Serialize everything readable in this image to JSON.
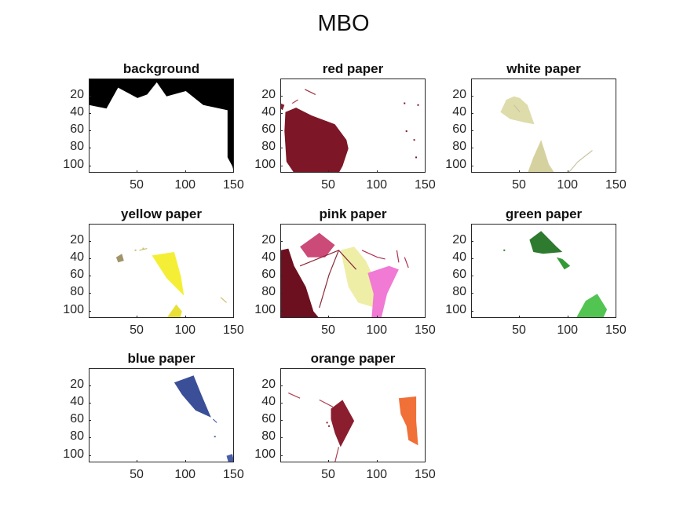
{
  "figure_title": "MBO",
  "chart_data": [
    {
      "type": "image",
      "title": "background",
      "xlim": [
        0.5,
        150.5
      ],
      "ylim": [
        0.5,
        108.5
      ],
      "xticks": [
        50,
        100,
        150
      ],
      "yticks": [
        20,
        40,
        60,
        80,
        100
      ],
      "background": "#000000",
      "regions": [
        {
          "color": "#ffffff",
          "points": [
            [
              0,
              30
            ],
            [
              18,
              34
            ],
            [
              30,
              10
            ],
            [
              50,
              22
            ],
            [
              60,
              18
            ],
            [
              70,
              4
            ],
            [
              80,
              20
            ],
            [
              100,
              14
            ],
            [
              118,
              30
            ],
            [
              143,
              36
            ],
            [
              143,
              90
            ],
            [
              148,
              100
            ],
            [
              150,
              108
            ],
            [
              0,
              108
            ]
          ]
        }
      ]
    },
    {
      "type": "image",
      "title": "red paper",
      "xlim": [
        0.5,
        150.5
      ],
      "ylim": [
        0.5,
        108.5
      ],
      "xticks": [
        50,
        100,
        150
      ],
      "yticks": [
        20,
        40,
        60,
        80,
        100
      ],
      "background": "#ffffff",
      "regions": [
        {
          "color": "#7d1626",
          "points": [
            [
              5,
              38
            ],
            [
              16,
              33
            ],
            [
              32,
              42
            ],
            [
              56,
              52
            ],
            [
              68,
              70
            ],
            [
              70,
              80
            ],
            [
              64,
              100
            ],
            [
              60,
              108
            ],
            [
              14,
              108
            ],
            [
              6,
              95
            ],
            [
              4,
              60
            ]
          ]
        },
        {
          "color": "#8a1d2e",
          "points": [
            [
              0,
              28
            ],
            [
              4,
              30
            ],
            [
              2,
              36
            ],
            [
              0,
              34
            ]
          ]
        }
      ],
      "lines": [
        {
          "color": "#9a3040",
          "points": [
            [
              25,
              12
            ],
            [
              36,
              18
            ]
          ]
        },
        {
          "color": "#b04050",
          "points": [
            [
              18,
              24
            ],
            [
              12,
              28
            ]
          ]
        }
      ],
      "dots": [
        {
          "color": "#7d1626",
          "points": [
            [
              142,
              30
            ],
            [
              138,
              70
            ],
            [
              140,
              90
            ],
            [
              128,
              28
            ],
            [
              130,
              60
            ]
          ]
        }
      ]
    },
    {
      "type": "image",
      "title": "white paper",
      "xlim": [
        0.5,
        150.5
      ],
      "ylim": [
        0.5,
        108.5
      ],
      "xticks": [
        50,
        100,
        150
      ],
      "yticks": [
        20,
        40,
        60,
        80,
        100
      ],
      "background": "#ffffff",
      "regions": [
        {
          "color": "#dedcaa",
          "points": [
            [
              30,
              38
            ],
            [
              36,
              24
            ],
            [
              44,
              20
            ],
            [
              50,
              22
            ],
            [
              58,
              30
            ],
            [
              65,
              52
            ],
            [
              55,
              50
            ],
            [
              40,
              46
            ]
          ]
        },
        {
          "color": "#d6d2a0",
          "points": [
            [
              58,
              108
            ],
            [
              64,
              90
            ],
            [
              72,
              70
            ],
            [
              80,
              98
            ],
            [
              86,
              108
            ]
          ]
        }
      ],
      "lines": [
        {
          "color": "#c8c4a0",
          "points": [
            [
              100,
              108
            ],
            [
              110,
              95
            ],
            [
              125,
              82
            ]
          ]
        },
        {
          "color": "#c8c4a0",
          "points": [
            [
              44,
              30
            ],
            [
              50,
              38
            ]
          ]
        }
      ],
      "dots": []
    },
    {
      "type": "image",
      "title": "yellow paper",
      "xlim": [
        0.5,
        150.5
      ],
      "ylim": [
        0.5,
        108.5
      ],
      "xticks": [
        50,
        100,
        150
      ],
      "yticks": [
        20,
        40,
        60,
        80,
        100
      ],
      "background": "#ffffff",
      "regions": [
        {
          "color": "#f4ef36",
          "points": [
            [
              65,
              36
            ],
            [
              88,
              32
            ],
            [
              95,
              60
            ],
            [
              98,
              82
            ],
            [
              80,
              62
            ]
          ]
        },
        {
          "color": "#e8e036",
          "points": [
            [
              80,
              108
            ],
            [
              90,
              92
            ],
            [
              96,
              100
            ],
            [
              94,
              108
            ]
          ]
        },
        {
          "color": "#a09468",
          "points": [
            [
              28,
              38
            ],
            [
              34,
              34
            ],
            [
              36,
              42
            ],
            [
              30,
              44
            ]
          ]
        }
      ],
      "lines": [
        {
          "color": "#c8c070",
          "points": [
            [
              52,
              30
            ],
            [
              60,
              28
            ]
          ]
        },
        {
          "color": "#c8c070",
          "points": [
            [
              136,
              84
            ],
            [
              142,
              90
            ]
          ]
        }
      ],
      "dots": [
        {
          "color": "#c8c070",
          "points": [
            [
              48,
              30
            ],
            [
              56,
              28
            ]
          ]
        }
      ]
    },
    {
      "type": "image",
      "title": "pink paper",
      "xlim": [
        0.5,
        150.5
      ],
      "ylim": [
        0.5,
        108.5
      ],
      "xticks": [
        50,
        100,
        150
      ],
      "yticks": [
        20,
        40,
        60,
        80,
        100
      ],
      "background": "#ffffff",
      "regions": [
        {
          "color": "#cc4a78",
          "points": [
            [
              20,
              26
            ],
            [
              40,
              10
            ],
            [
              56,
              24
            ],
            [
              46,
              38
            ],
            [
              28,
              38
            ]
          ]
        },
        {
          "color": "#6c1020",
          "points": [
            [
              0,
              30
            ],
            [
              8,
              28
            ],
            [
              14,
              48
            ],
            [
              20,
              60
            ],
            [
              26,
              72
            ],
            [
              30,
              86
            ],
            [
              34,
              100
            ],
            [
              40,
              108
            ],
            [
              0,
              108
            ]
          ]
        },
        {
          "color": "#eeeea6",
          "points": [
            [
              62,
              30
            ],
            [
              76,
              26
            ],
            [
              88,
              42
            ],
            [
              100,
              70
            ],
            [
              98,
              96
            ],
            [
              80,
              90
            ],
            [
              70,
              72
            ]
          ]
        },
        {
          "color": "#f07ad4",
          "points": [
            [
              90,
              56
            ],
            [
              112,
              48
            ],
            [
              122,
              52
            ],
            [
              110,
              80
            ],
            [
              104,
              108
            ],
            [
              94,
              108
            ],
            [
              96,
              80
            ]
          ]
        }
      ],
      "lines": [
        {
          "color": "#8a2838",
          "points": [
            [
              20,
              48
            ],
            [
              60,
              30
            ],
            [
              78,
              52
            ]
          ]
        },
        {
          "color": "#8a2838",
          "points": [
            [
              60,
              30
            ],
            [
              50,
              58
            ],
            [
              40,
              96
            ]
          ]
        },
        {
          "color": "#b03050",
          "points": [
            [
              84,
              30
            ],
            [
              100,
              38
            ],
            [
              108,
              40
            ]
          ]
        },
        {
          "color": "#b03050",
          "points": [
            [
              120,
              30
            ],
            [
              122,
              44
            ]
          ]
        },
        {
          "color": "#b03050",
          "points": [
            [
              128,
              38
            ],
            [
              132,
              50
            ]
          ]
        }
      ],
      "dots": []
    },
    {
      "type": "image",
      "title": "green paper",
      "xlim": [
        0.5,
        150.5
      ],
      "ylim": [
        0.5,
        108.5
      ],
      "xticks": [
        50,
        100,
        150
      ],
      "yticks": [
        20,
        40,
        60,
        80,
        100
      ],
      "background": "#ffffff",
      "regions": [
        {
          "color": "#2e7a2e",
          "points": [
            [
              60,
              18
            ],
            [
              72,
              8
            ],
            [
              88,
              26
            ],
            [
              94,
              32
            ],
            [
              74,
              34
            ],
            [
              64,
              32
            ]
          ]
        },
        {
          "color": "#359a35",
          "points": [
            [
              88,
              38
            ],
            [
              94,
              40
            ],
            [
              102,
              48
            ],
            [
              96,
              52
            ]
          ]
        },
        {
          "color": "#52c452",
          "points": [
            [
              108,
              108
            ],
            [
              118,
              88
            ],
            [
              130,
              80
            ],
            [
              140,
              98
            ],
            [
              136,
              108
            ]
          ]
        }
      ],
      "lines": [],
      "dots": [
        {
          "color": "#2e7a2e",
          "points": [
            [
              34,
              30
            ]
          ]
        }
      ]
    },
    {
      "type": "image",
      "title": "blue paper",
      "xlim": [
        0.5,
        150.5
      ],
      "ylim": [
        0.5,
        108.5
      ],
      "xticks": [
        50,
        100,
        150
      ],
      "yticks": [
        20,
        40,
        60,
        80,
        100
      ],
      "background": "#ffffff",
      "regions": [
        {
          "color": "#3a4f98",
          "points": [
            [
              88,
              16
            ],
            [
              108,
              8
            ],
            [
              116,
              30
            ],
            [
              126,
              56
            ],
            [
              110,
              48
            ],
            [
              96,
              30
            ]
          ]
        },
        {
          "color": "#4a5ea8",
          "points": [
            [
              142,
              100
            ],
            [
              148,
              98
            ],
            [
              150,
              108
            ],
            [
              144,
              108
            ]
          ]
        }
      ],
      "lines": [
        {
          "color": "#5066b0",
          "points": [
            [
              128,
              58
            ],
            [
              132,
              62
            ]
          ]
        }
      ],
      "dots": [
        {
          "color": "#5066b0",
          "points": [
            [
              130,
              78
            ]
          ]
        }
      ]
    },
    {
      "type": "image",
      "title": "orange paper",
      "xlim": [
        0.5,
        150.5
      ],
      "ylim": [
        0.5,
        108.5
      ],
      "xticks": [
        50,
        100,
        150
      ],
      "yticks": [
        20,
        40,
        60,
        80,
        100
      ],
      "background": "#ffffff",
      "regions": [
        {
          "color": "#8a1e2e",
          "points": [
            [
              52,
              46
            ],
            [
              64,
              36
            ],
            [
              76,
              60
            ],
            [
              62,
              90
            ],
            [
              56,
              74
            ],
            [
              52,
              58
            ]
          ]
        },
        {
          "color": "#f07038",
          "points": [
            [
              122,
              34
            ],
            [
              140,
              32
            ],
            [
              140,
              60
            ],
            [
              142,
              88
            ],
            [
              132,
              82
            ],
            [
              130,
              66
            ],
            [
              124,
              52
            ]
          ]
        }
      ],
      "lines": [
        {
          "color": "#b04050",
          "points": [
            [
              8,
              28
            ],
            [
              20,
              34
            ]
          ]
        },
        {
          "color": "#b04050",
          "points": [
            [
              40,
              36
            ],
            [
              54,
              44
            ]
          ]
        },
        {
          "color": "#b04050",
          "points": [
            [
              60,
              90
            ],
            [
              56,
              108
            ]
          ]
        }
      ],
      "dots": [
        {
          "color": "#8a1e2e",
          "points": [
            [
              48,
              62
            ],
            [
              50,
              66
            ]
          ]
        }
      ]
    }
  ]
}
